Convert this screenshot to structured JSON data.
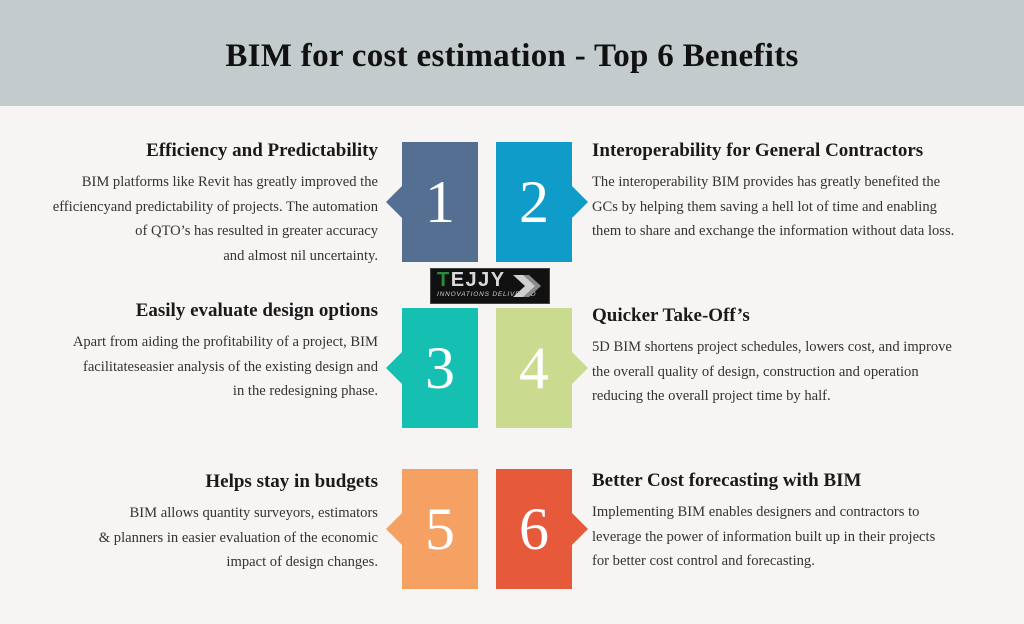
{
  "title": "BIM for cost estimation - Top 6 Benefits",
  "logo": {
    "text_first": "T",
    "text_rest": "EJJY",
    "tagline": "INNOVATIONS DELIVERED"
  },
  "benefits": [
    {
      "number": "1",
      "title": "Efficiency and Predictability",
      "lines": [
        "BIM platforms like Revit has greatly improved the",
        "efficiencyand predictability of projects. The automation",
        "of QTO’s has resulted in greater accuracy",
        "and almost nil uncertainty."
      ],
      "color": "#556f93"
    },
    {
      "number": "2",
      "title": "Interoperability for General Contractors",
      "lines": [
        "The interoperability BIM provides has greatly benefited the",
        "GCs by helping them saving a hell lot of time and enabling",
        "them to share and exchange the information without data loss."
      ],
      "color": "#0f9cc9"
    },
    {
      "number": "3",
      "title": "Easily evaluate design options",
      "lines": [
        "Apart from aiding the profitability of a project, BIM",
        "facilitateseasier analysis of the existing design and",
        "in the redesigning phase."
      ],
      "color": "#15c0b3"
    },
    {
      "number": "4",
      "title": "Quicker Take-Off’s",
      "lines": [
        "5D BIM shortens project schedules, lowers cost, and improve",
        "the overall quality of design, construction and operation",
        "reducing the overall project time by half."
      ],
      "color": "#cadb8f"
    },
    {
      "number": "5",
      "title": "Helps stay in budgets",
      "lines": [
        "BIM allows quantity surveyors, estimators",
        "& planners in easier evaluation of the economic",
        "impact of design changes."
      ],
      "color": "#f5a164"
    },
    {
      "number": "6",
      "title": "Better Cost forecasting with BIM",
      "lines": [
        "Implementing BIM enables designers and contractors to",
        "leverage the power of information built up in their projects",
        "for better cost control and forecasting."
      ],
      "color": "#e65a3b"
    }
  ]
}
